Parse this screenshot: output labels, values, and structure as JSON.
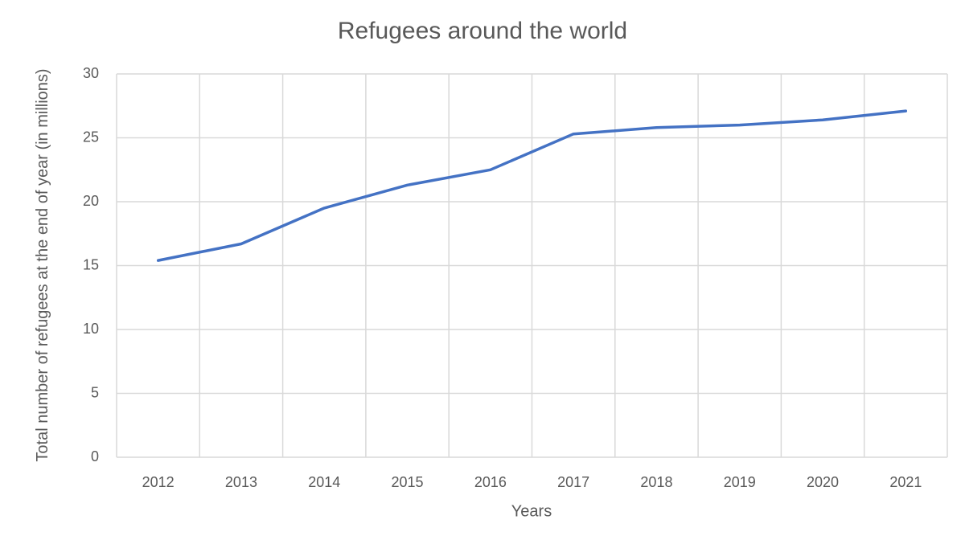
{
  "chart_data": {
    "type": "line",
    "title": "Refugees around the world",
    "x_label": "Years",
    "y_label": "Total number of refugees at the end of year (in millions)",
    "categories": [
      "2012",
      "2013",
      "2014",
      "2015",
      "2016",
      "2017",
      "2018",
      "2019",
      "2020",
      "2021"
    ],
    "values": [
      15.4,
      16.7,
      19.5,
      21.3,
      22.5,
      25.3,
      25.8,
      26.0,
      26.4,
      27.1
    ],
    "color": "#4472c4",
    "ylim": [
      0,
      30
    ],
    "yticks": [
      0,
      5,
      10,
      15,
      20,
      25,
      30
    ],
    "grid": true
  }
}
